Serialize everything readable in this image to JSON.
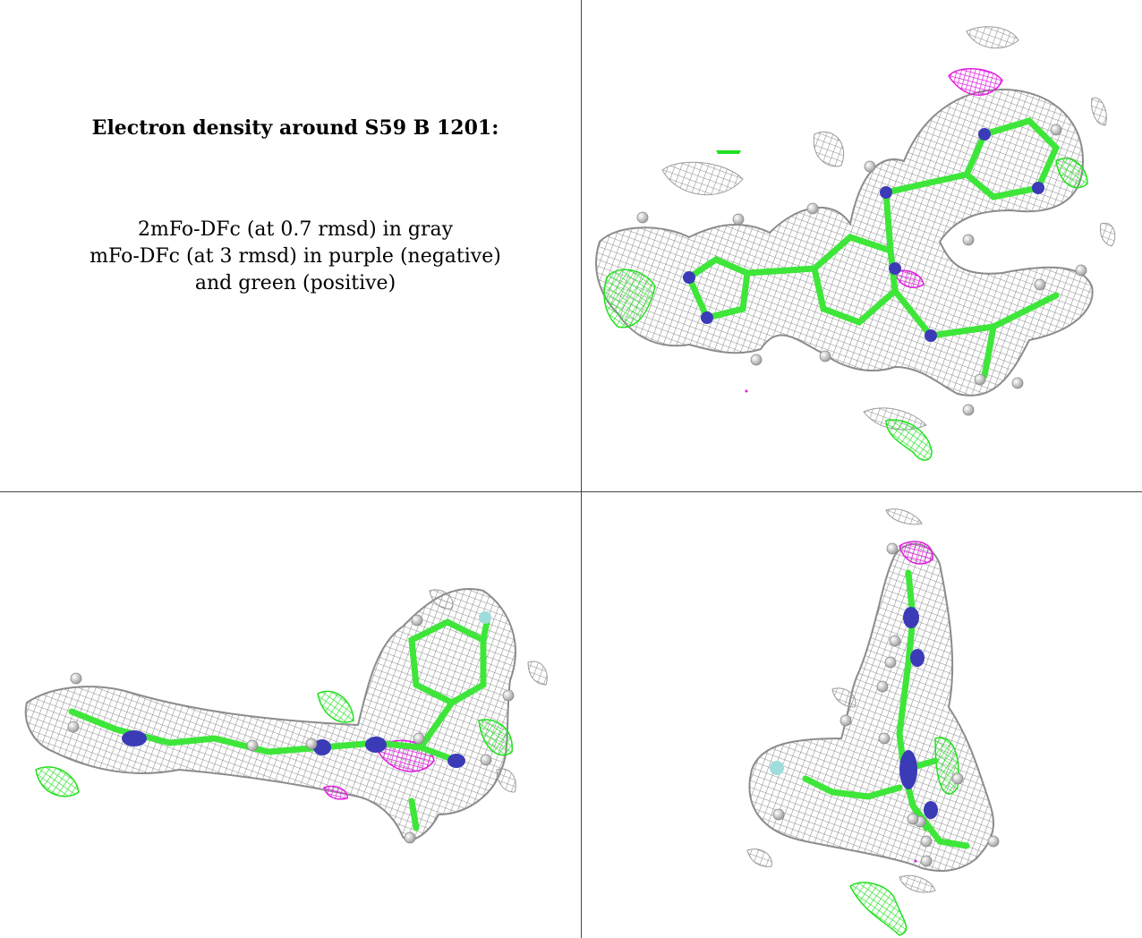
{
  "caption": {
    "title": "Electron density around S59 B 1201:",
    "line1": "2mFo-DFc (at 0.7 rmsd) in gray",
    "line2": "mFo-DFc (at 3 rmsd) in purple (negative)",
    "line3": "and green (positive)"
  },
  "colors": {
    "density_mesh": "#8c8c8c",
    "positive_difference": "#22e01f",
    "negative_difference": "#e01fe0",
    "carbon": "#3ee63a",
    "nitrogen": "#3b3bb8",
    "hydrogen": "#e6e6e6",
    "fluorine": "#9fdcdc"
  },
  "panels": [
    {
      "name": "view-1",
      "description_icon": "molecule-density-view"
    },
    {
      "name": "view-2",
      "description_icon": "molecule-density-side-view"
    },
    {
      "name": "view-3",
      "description_icon": "molecule-density-end-view"
    }
  ]
}
